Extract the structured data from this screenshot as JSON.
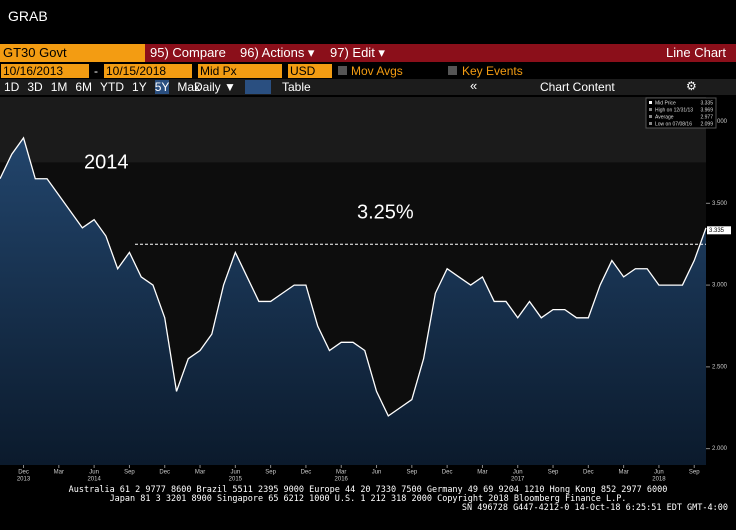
{
  "window_title": "GRAB",
  "toolbar": {
    "security": "GT30 Govt",
    "compare": "95) Compare",
    "actions": "96) Actions ▾",
    "edit": "97) Edit ▾",
    "view": "Line Chart",
    "start_date": "10/16/2013",
    "dash": "-",
    "end_date": "10/15/2018",
    "field": "Mid Px",
    "currency": "USD",
    "mov_avgs": "Mov Avgs",
    "key_events": "Key Events",
    "periods": [
      "1D",
      "3D",
      "1M",
      "6M",
      "YTD",
      "1Y",
      "5Y",
      "Max"
    ],
    "frequency": "Daily ▼",
    "table": "Table",
    "collapse": "«",
    "chart_content": "Chart Content"
  },
  "chart_data": {
    "type": "line",
    "annotations": [
      "2014",
      "3.25%"
    ],
    "reference_line": 3.25,
    "x": [
      "2013-10",
      "2013-11",
      "2013-12",
      "2014-01",
      "2014-02",
      "2014-03",
      "2014-04",
      "2014-05",
      "2014-06",
      "2014-07",
      "2014-08",
      "2014-09",
      "2014-10",
      "2014-11",
      "2014-12",
      "2015-01",
      "2015-02",
      "2015-03",
      "2015-04",
      "2015-05",
      "2015-06",
      "2015-07",
      "2015-08",
      "2015-09",
      "2015-10",
      "2015-11",
      "2015-12",
      "2016-01",
      "2016-02",
      "2016-03",
      "2016-04",
      "2016-05",
      "2016-06",
      "2016-07",
      "2016-08",
      "2016-09",
      "2016-10",
      "2016-11",
      "2016-12",
      "2017-01",
      "2017-02",
      "2017-03",
      "2017-04",
      "2017-05",
      "2017-06",
      "2017-07",
      "2017-08",
      "2017-09",
      "2017-10",
      "2017-11",
      "2017-12",
      "2018-01",
      "2018-02",
      "2018-03",
      "2018-04",
      "2018-05",
      "2018-06",
      "2018-07",
      "2018-08",
      "2018-09",
      "2018-10"
    ],
    "series": [
      {
        "name": "Mid Price",
        "color": "#ffffff",
        "values": [
          3.65,
          3.8,
          3.9,
          3.65,
          3.65,
          3.55,
          3.45,
          3.35,
          3.4,
          3.3,
          3.1,
          3.2,
          3.05,
          3.0,
          2.8,
          2.35,
          2.55,
          2.6,
          2.7,
          3.0,
          3.2,
          3.05,
          2.9,
          2.9,
          2.95,
          3.0,
          3.0,
          2.75,
          2.6,
          2.65,
          2.65,
          2.6,
          2.35,
          2.2,
          2.25,
          2.3,
          2.55,
          2.95,
          3.1,
          3.05,
          3.0,
          3.05,
          2.9,
          2.9,
          2.8,
          2.9,
          2.8,
          2.85,
          2.85,
          2.8,
          2.8,
          3.0,
          3.15,
          3.05,
          3.1,
          3.1,
          3.0,
          3.0,
          3.0,
          3.15,
          3.35
        ]
      }
    ],
    "legend": [
      {
        "label": "Mid Price",
        "value": {
          "value": 3.335,
          "label": "3.335"
        }
      },
      {
        "label": "High on 12/31/13",
        "value": {
          "value": 3.969,
          "label": "3.969"
        }
      },
      {
        "label": "Average",
        "value": {
          "value": 2.977,
          "label": "2.977"
        }
      },
      {
        "label": "Low on 07/08/16",
        "value": {
          "value": 2.099,
          "label": "2.099"
        }
      }
    ],
    "last_value": {
      "value": 3.335,
      "label": "3.335"
    },
    "xlim": [
      "2013-10",
      "2018-10"
    ],
    "ylim": [
      1.9,
      4.15
    ],
    "yticks": [
      {
        "value": 2,
        "label": "2.000"
      },
      {
        "value": 2.5,
        "label": "2.500"
      },
      {
        "value": 3,
        "label": "3.000"
      },
      {
        "value": 3.5,
        "label": "3.500"
      },
      {
        "value": 4,
        "label": "4.000"
      }
    ],
    "xticks": [
      {
        "value": "2013-12",
        "label": "Dec"
      },
      {
        "value": "2014-03",
        "label": "Mar"
      },
      {
        "value": "2014-06",
        "label": "Jun"
      },
      {
        "value": "2014-09",
        "label": "Sep"
      },
      {
        "value": "2014-12",
        "label": "Dec"
      },
      {
        "value": "2015-03",
        "label": "Mar"
      },
      {
        "value": "2015-06",
        "label": "Jun"
      },
      {
        "value": "2015-09",
        "label": "Sep"
      },
      {
        "value": "2015-12",
        "label": "Dec"
      },
      {
        "value": "2016-03",
        "label": "Mar"
      },
      {
        "value": "2016-06",
        "label": "Jun"
      },
      {
        "value": "2016-09",
        "label": "Sep"
      },
      {
        "value": "2016-12",
        "label": "Dec"
      },
      {
        "value": "2017-03",
        "label": "Mar"
      },
      {
        "value": "2017-06",
        "label": "Jun"
      },
      {
        "value": "2017-09",
        "label": "Sep"
      },
      {
        "value": "2017-12",
        "label": "Dec"
      },
      {
        "value": "2018-03",
        "label": "Mar"
      },
      {
        "value": "2018-06",
        "label": "Jun"
      },
      {
        "value": "2018-09",
        "label": "Sep"
      }
    ],
    "xyears": [
      {
        "value": "2013-12",
        "label": "2013"
      },
      {
        "value": "2014-06",
        "label": "2014"
      },
      {
        "value": "2015-06",
        "label": "2015"
      },
      {
        "value": "2016-03",
        "label": "2016"
      },
      {
        "value": "2017-06",
        "label": "2017"
      },
      {
        "value": "2018-06",
        "label": "2018"
      }
    ]
  },
  "footer": [
    "Australia 61 2 9777 8600 Brazil 5511 2395 9000 Europe 44 20 7330 7500 Germany 49 69 9204 1210 Hong Kong 852 2977 6000",
    "Japan 81 3 3201 8900       Singapore 65 6212 1000       U.S. 1 212 318 2000           Copyright 2018 Bloomberg Finance L.P.",
    "SN 496728 G447-4212-0 14-Oct-18  6:25:51 EDT  GMT-4:00"
  ]
}
